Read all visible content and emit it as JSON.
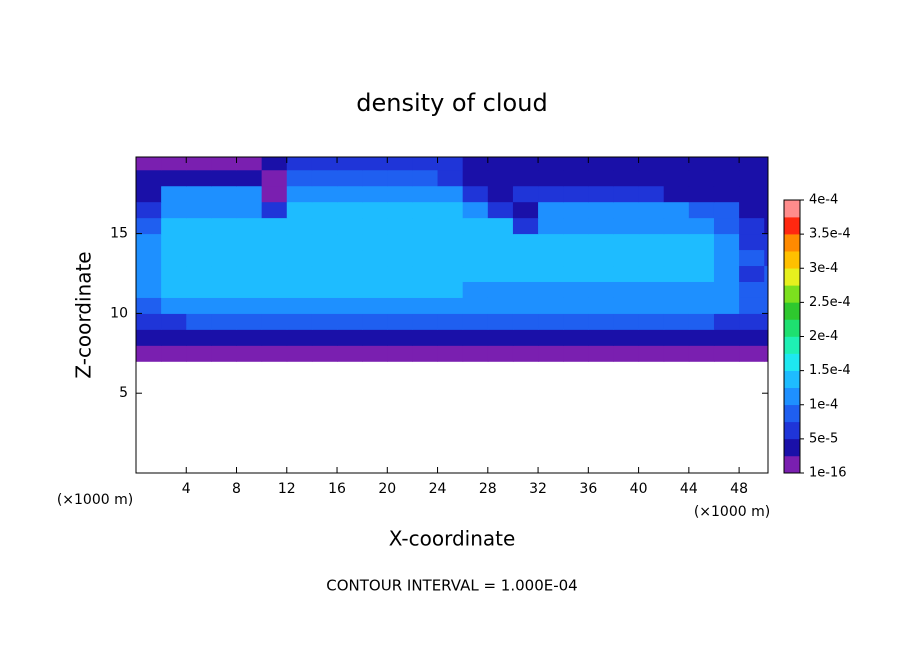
{
  "chart_data": {
    "type": "heatmap",
    "title": "density of cloud",
    "x_label": "X-coordinate",
    "y_label": "Z-coordinate",
    "x_unit": "(×1000 m)",
    "y_unit": "(×1000 m)",
    "footnote": "CONTOUR INTERVAL = 1.000E-04",
    "xlim": [
      0,
      50.3
    ],
    "ylim": [
      0,
      19.8
    ],
    "xticks": [
      4,
      8,
      12,
      16,
      20,
      24,
      28,
      32,
      36,
      40,
      44,
      48
    ],
    "yticks": [
      5,
      10,
      15
    ],
    "x": [
      1,
      3,
      5,
      7,
      9,
      11,
      13,
      15,
      17,
      19,
      21,
      23,
      25,
      27,
      29,
      31,
      33,
      35,
      37,
      39,
      41,
      43,
      45,
      47,
      49,
      51
    ],
    "y": [
      7.5,
      8.5,
      9.5,
      10.5,
      11.5,
      12.5,
      13.5,
      14.5,
      15.5,
      16.5,
      17.5,
      18.5,
      19.5
    ],
    "z": [
      [
        5e-06,
        5e-06,
        5e-06,
        5e-06,
        5e-06,
        5e-06,
        5e-06,
        5e-06,
        5e-06,
        5e-06,
        5e-06,
        5e-06,
        5e-06,
        5e-06,
        5e-06,
        5e-06,
        5e-06,
        5e-06,
        5e-06,
        5e-06,
        5e-06,
        5e-06,
        5e-06,
        5e-06,
        5e-06,
        5e-06
      ],
      [
        3e-05,
        3e-05,
        3e-05,
        3e-05,
        3e-05,
        3e-05,
        3e-05,
        3e-05,
        3e-05,
        3e-05,
        3e-05,
        3e-05,
        3e-05,
        3e-05,
        3e-05,
        3e-05,
        3e-05,
        3e-05,
        3e-05,
        3e-05,
        3e-05,
        3e-05,
        3e-05,
        3e-05,
        4e-05,
        4e-05
      ],
      [
        7e-05,
        7e-05,
        9e-05,
        9e-05,
        9e-05,
        9e-05,
        9e-05,
        9e-05,
        9e-05,
        9e-05,
        9e-05,
        9e-05,
        9e-05,
        9e-05,
        9e-05,
        9e-05,
        9e-05,
        9e-05,
        9e-05,
        9e-05,
        9e-05,
        9e-05,
        9e-05,
        7e-05,
        7e-05,
        7e-05
      ],
      [
        9e-05,
        0.00011,
        0.00011,
        0.00011,
        0.00011,
        0.00011,
        0.00011,
        0.00011,
        0.00011,
        0.00011,
        0.00011,
        0.00011,
        0.00011,
        0.00011,
        0.00011,
        0.00011,
        0.00011,
        0.00011,
        0.00011,
        0.00011,
        0.00011,
        0.00011,
        0.00011,
        0.000105,
        8e-05,
        8e-05
      ],
      [
        0.00011,
        0.00013,
        0.00013,
        0.00013,
        0.00013,
        0.00013,
        0.00013,
        0.00013,
        0.00013,
        0.00013,
        0.00013,
        0.00013,
        0.00013,
        0.00012,
        0.00012,
        0.00012,
        0.00012,
        0.00012,
        0.00012,
        0.00012,
        0.00012,
        0.00012,
        0.00012,
        0.00011,
        8e-05,
        0.0001
      ],
      [
        0.00012,
        0.000145,
        0.000145,
        0.000145,
        0.000145,
        0.000145,
        0.000145,
        0.000145,
        0.000145,
        0.000145,
        0.000145,
        0.000145,
        0.000145,
        0.00013,
        0.00013,
        0.00013,
        0.00013,
        0.00013,
        0.00013,
        0.00013,
        0.00013,
        0.00013,
        0.00013,
        0.000115,
        7e-05,
        9e-05
      ],
      [
        0.000125,
        0.00015,
        0.00015,
        0.00015,
        0.00015,
        0.00015,
        0.00015,
        0.00015,
        0.00015,
        0.00015,
        0.00015,
        0.00015,
        0.00015,
        0.000135,
        0.000135,
        0.000135,
        0.000135,
        0.000135,
        0.000135,
        0.000135,
        0.000135,
        0.000135,
        0.000135,
        0.00012,
        8e-05,
        7e-05
      ],
      [
        0.00011,
        0.00015,
        0.00015,
        0.00015,
        0.00015,
        0.00015,
        0.00015,
        0.00015,
        0.00015,
        0.00015,
        0.00015,
        0.00015,
        0.00015,
        0.00013,
        0.00013,
        0.00013,
        0.000135,
        0.000135,
        0.000135,
        0.000135,
        0.000135,
        0.000135,
        0.000135,
        0.000115,
        7e-05,
        6e-05
      ],
      [
        8e-05,
        0.000145,
        0.000145,
        0.000145,
        0.000145,
        0.000145,
        0.000145,
        0.000145,
        0.000145,
        0.000145,
        0.000145,
        0.000145,
        0.000145,
        0.00013,
        0.00013,
        6e-05,
        0.00012,
        0.00012,
        0.00012,
        0.00012,
        0.00012,
        0.00012,
        0.000115,
        9e-05,
        6e-05,
        5e-05
      ],
      [
        6e-05,
        0.000125,
        0.000125,
        0.000125,
        0.000125,
        7e-05,
        0.00013,
        0.00013,
        0.00013,
        0.00013,
        0.00013,
        0.00013,
        0.00013,
        0.00011,
        6e-05,
        5e-05,
        0.000105,
        0.000105,
        0.000105,
        0.000105,
        0.000105,
        0.000105,
        8e-05,
        8e-05,
        5e-05,
        4e-05
      ],
      [
        5e-05,
        0.000105,
        0.000105,
        0.000105,
        0.000105,
        1e-05,
        0.000115,
        0.000115,
        0.000115,
        0.000115,
        0.000115,
        0.000115,
        0.000105,
        6e-05,
        4e-05,
        7e-05,
        7e-05,
        7e-05,
        7e-05,
        7e-05,
        7e-05,
        5e-05,
        5e-05,
        5e-05,
        5e-05,
        5e-05
      ],
      [
        4e-05,
        4e-05,
        4e-05,
        4e-05,
        4e-05,
        2e-05,
        9e-05,
        9e-05,
        9e-05,
        9e-05,
        9e-05,
        9e-05,
        7e-05,
        4e-05,
        4e-05,
        4e-05,
        4e-05,
        4e-05,
        4e-05,
        4e-05,
        4e-05,
        4e-05,
        4e-05,
        4e-05,
        4e-05,
        4e-05
      ],
      [
        1e-05,
        1e-05,
        1e-05,
        1e-05,
        1e-05,
        3e-05,
        6e-05,
        6e-05,
        6e-05,
        6e-05,
        6e-05,
        6e-05,
        6e-05,
        3e-05,
        3e-05,
        3e-05,
        3e-05,
        3e-05,
        3e-05,
        3e-05,
        3e-05,
        3e-05,
        3e-05,
        3e-05,
        3e-05,
        3e-05
      ]
    ],
    "colorbar": {
      "ticks": [
        {
          "value": 1e-16,
          "label": "1e-16"
        },
        {
          "value": 5e-05,
          "label": "5e-5"
        },
        {
          "value": 0.0001,
          "label": "1e-4"
        },
        {
          "value": 0.00015,
          "label": "1.5e-4"
        },
        {
          "value": 0.0002,
          "label": "2e-4"
        },
        {
          "value": 0.00025,
          "label": "2.5e-4"
        },
        {
          "value": 0.0003,
          "label": "3e-4"
        },
        {
          "value": 0.00035,
          "label": "3.5e-4"
        },
        {
          "value": 0.0004,
          "label": "4e-4"
        }
      ],
      "colors": [
        "#7a1fb0",
        "#1a10a8",
        "#1f35d8",
        "#1f5ff0",
        "#1e90ff",
        "#1ebcff",
        "#1ee8f0",
        "#1ef0b4",
        "#1ee070",
        "#2ec82e",
        "#7ce01e",
        "#e6f01e",
        "#ffc000",
        "#ff8a00",
        "#ff2810",
        "#ff8c8c"
      ]
    }
  }
}
